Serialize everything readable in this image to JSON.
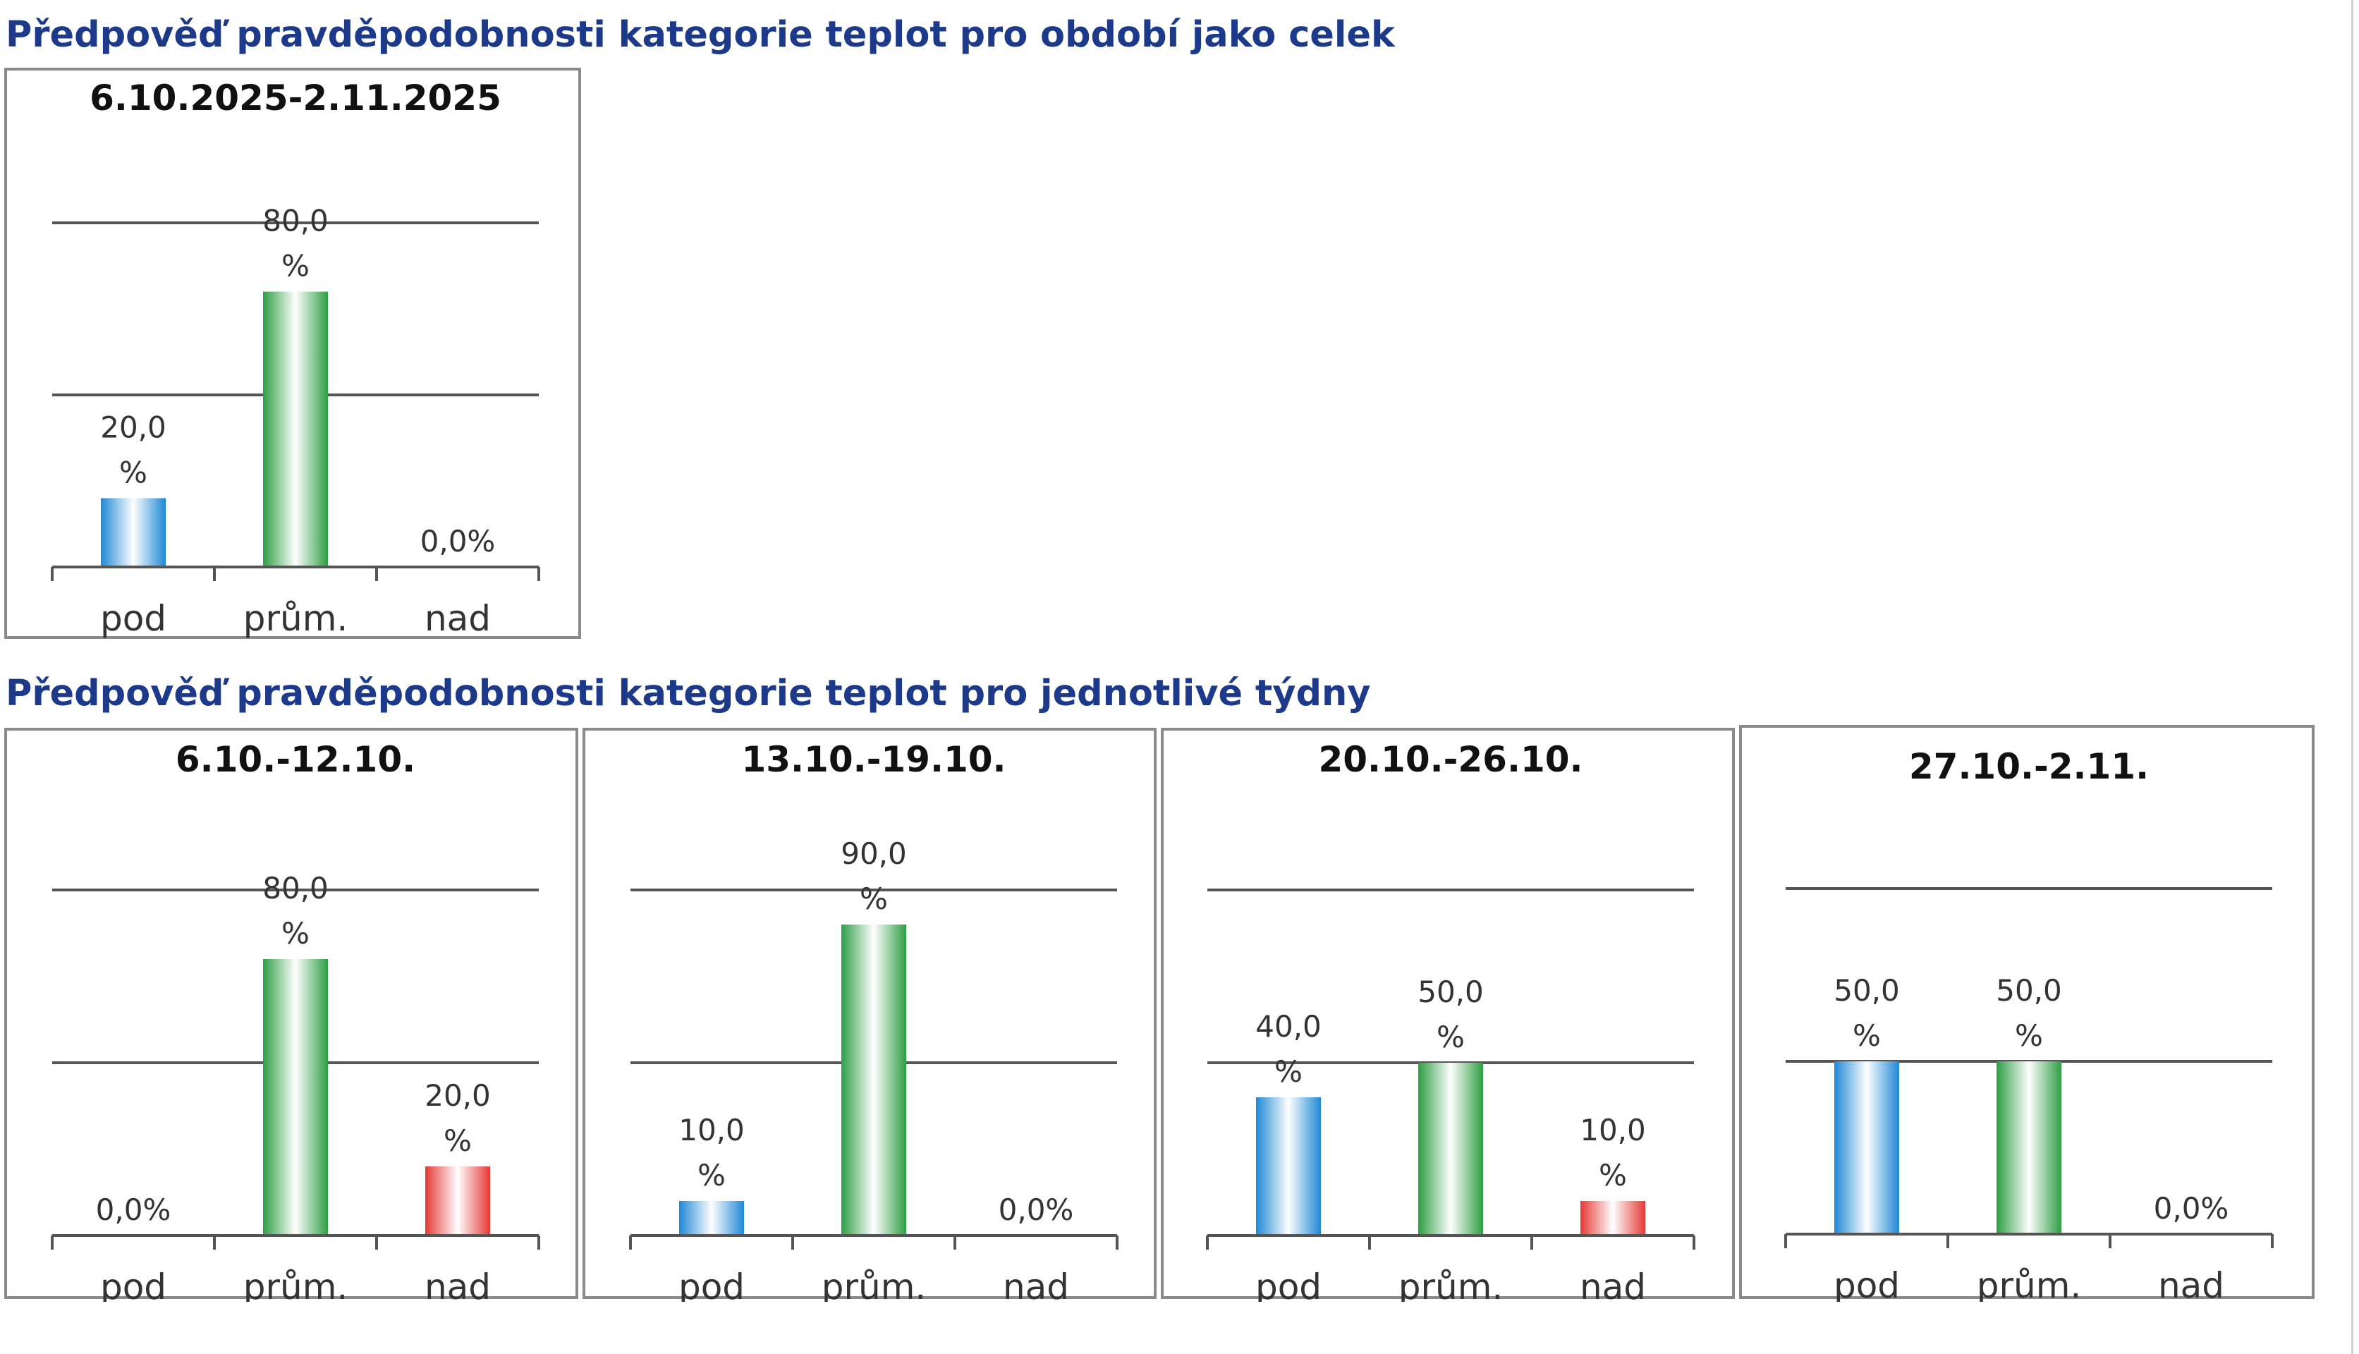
{
  "headings": {
    "overall": "Předpověď pravděpodobnosti kategorie teplot pro období jako celek",
    "weekly": "Předpověď pravděpodobnosti kategorie teplot pro jednotlivé týdny"
  },
  "colors": {
    "heading": "#1d3a8a",
    "pod": "#1e88d6",
    "prum": "#2e9e44",
    "nad": "#e53935",
    "grid": "#555555",
    "frame": "#8a8a8a"
  },
  "chart_data": [
    {
      "type": "bar",
      "title": "6.10.2025-2.11.2025",
      "categories": [
        "pod",
        "prům.",
        "nad"
      ],
      "values": [
        20,
        80,
        0
      ],
      "value_labels": [
        "20,0 %",
        "80,0 %",
        "0,0%"
      ],
      "ylim": [
        0,
        100
      ],
      "grid": true
    },
    {
      "type": "bar",
      "title": "6.10.-12.10.",
      "categories": [
        "pod",
        "prům.",
        "nad"
      ],
      "values": [
        0,
        80,
        20
      ],
      "value_labels": [
        "0,0%",
        "80,0 %",
        "20,0 %"
      ],
      "ylim": [
        0,
        100
      ],
      "grid": true
    },
    {
      "type": "bar",
      "title": "13.10.-19.10.",
      "categories": [
        "pod",
        "prům.",
        "nad"
      ],
      "values": [
        10,
        90,
        0
      ],
      "value_labels": [
        "10,0 %",
        "90,0 %",
        "0,0%"
      ],
      "ylim": [
        0,
        100
      ],
      "grid": true
    },
    {
      "type": "bar",
      "title": "20.10.-26.10.",
      "categories": [
        "pod",
        "prům.",
        "nad"
      ],
      "values": [
        40,
        50,
        10
      ],
      "value_labels": [
        "40,0 %",
        "50,0 %",
        "10,0 %"
      ],
      "ylim": [
        0,
        100
      ],
      "grid": true
    },
    {
      "type": "bar",
      "title": "27.10.-2.11.",
      "categories": [
        "pod",
        "prům.",
        "nad"
      ],
      "values": [
        50,
        50,
        0
      ],
      "value_labels": [
        "50,0 %",
        "50,0 %",
        "0,0%"
      ],
      "ylim": [
        0,
        100
      ],
      "grid": true
    }
  ]
}
